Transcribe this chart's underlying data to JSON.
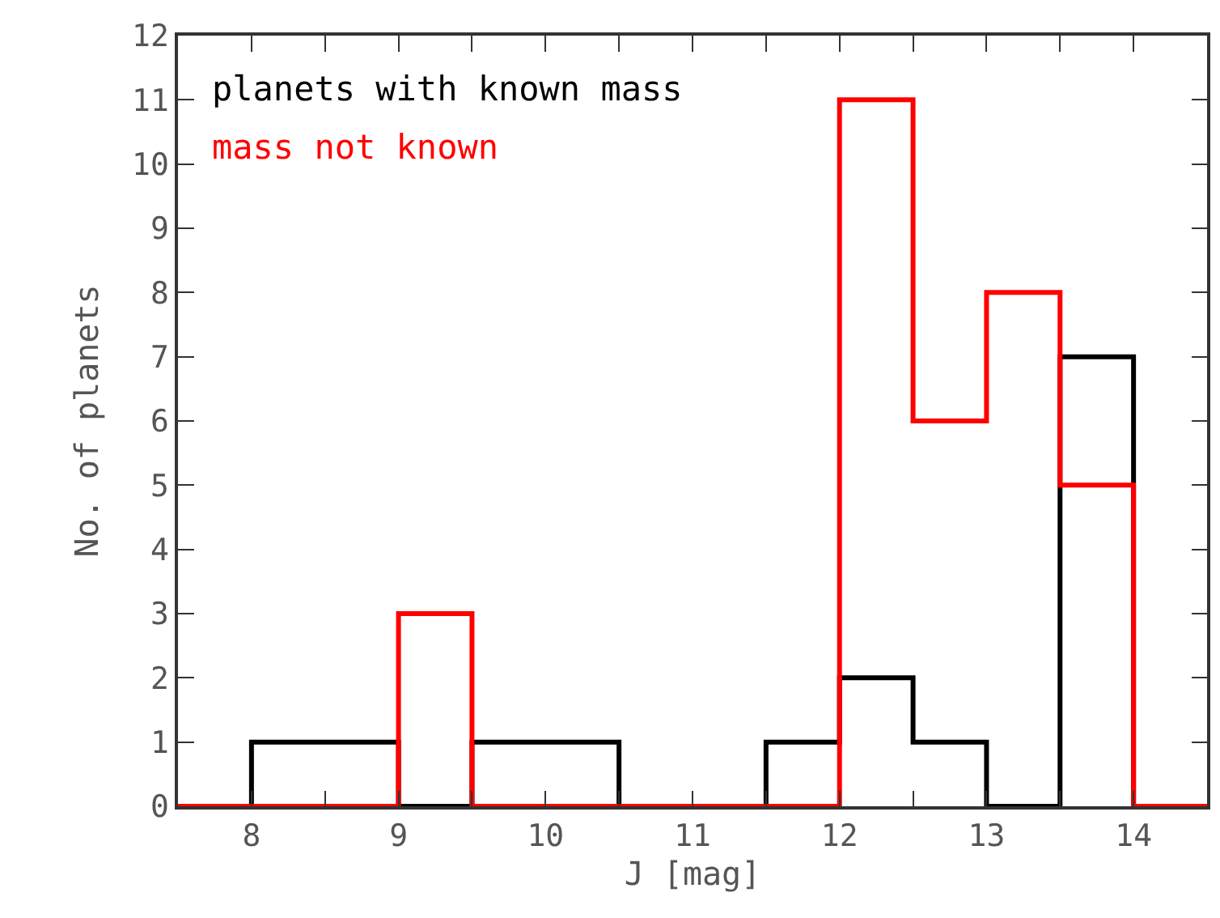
{
  "chart_data": {
    "type": "histogram",
    "xlabel": "J [mag]",
    "ylabel": "No. of planets",
    "bins": [
      7.5,
      8,
      8.5,
      9,
      9.5,
      10,
      10.5,
      11,
      11.5,
      12,
      12.5,
      13,
      13.5,
      14,
      14.5
    ],
    "series": [
      {
        "name": "planets with known mass",
        "color": "#000000",
        "values": [
          0,
          1,
          1,
          0,
          1,
          1,
          0,
          0,
          1,
          2,
          1,
          0,
          7,
          0
        ]
      },
      {
        "name": "mass not known",
        "color": "#ff0000",
        "values": [
          0,
          0,
          0,
          3,
          0,
          0,
          0,
          0,
          0,
          11,
          6,
          8,
          5,
          0
        ]
      }
    ],
    "xlim": [
      7.5,
      14.5
    ],
    "xticks": [
      {
        "value": 8,
        "label": "8"
      },
      {
        "value": 8.5,
        "label": null
      },
      {
        "value": 9,
        "label": "9"
      },
      {
        "value": 9.5,
        "label": null
      },
      {
        "value": 10,
        "label": "10"
      },
      {
        "value": 10.5,
        "label": null
      },
      {
        "value": 11,
        "label": "11"
      },
      {
        "value": 11.5,
        "label": null
      },
      {
        "value": 12,
        "label": "12"
      },
      {
        "value": 12.5,
        "label": null
      },
      {
        "value": 13,
        "label": "13"
      },
      {
        "value": 13.5,
        "label": null
      },
      {
        "value": 14,
        "label": "14"
      }
    ],
    "ylim": [
      0,
      12
    ],
    "yticks": [
      0,
      1,
      2,
      3,
      4,
      5,
      6,
      7,
      8,
      9,
      10,
      11,
      12
    ],
    "legend": "top left"
  }
}
